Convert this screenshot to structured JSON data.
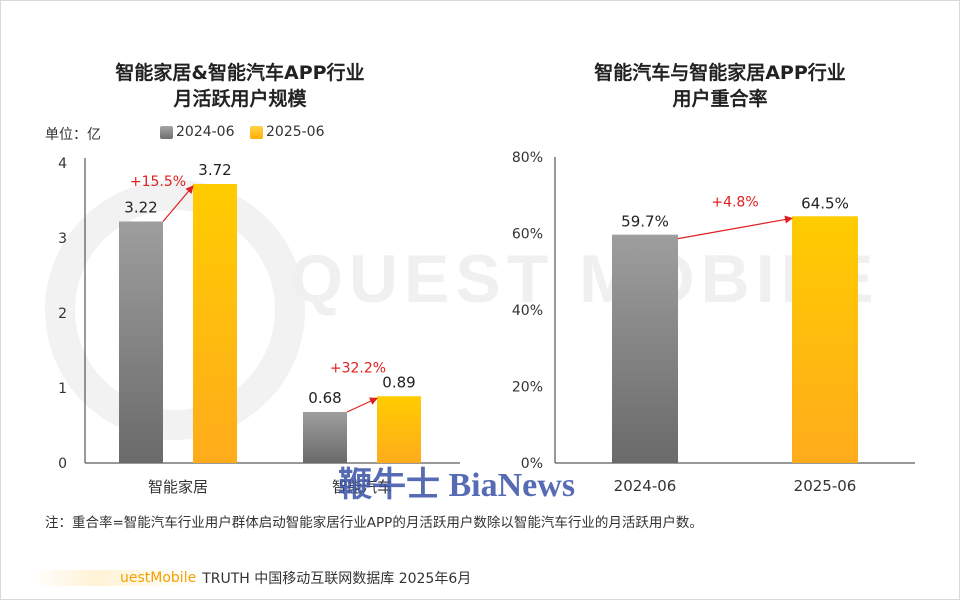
{
  "colors": {
    "series_2024": "#8c8c8c",
    "series_2025": "#ffc000",
    "growth": "#e02020",
    "axis": "#333333",
    "source_brand": "#f5a000",
    "watermark_text": "#3a52a8"
  },
  "chart_data": [
    {
      "type": "bar",
      "title_line1": "智能家居&智能汽车APP行业",
      "title_line2": "月活跃用户规模",
      "unit_label": "单位：亿",
      "legend_position": "top",
      "grid": false,
      "categories": [
        "智能家居",
        "智能汽车"
      ],
      "series": [
        {
          "name": "2024-06",
          "values": [
            3.22,
            0.68
          ],
          "labels": [
            "3.22",
            "0.68"
          ]
        },
        {
          "name": "2025-06",
          "values": [
            3.72,
            0.89
          ],
          "labels": [
            "3.72",
            "0.89"
          ]
        }
      ],
      "growth": [
        "+15.5%",
        "+32.2%"
      ],
      "ylim": [
        0,
        4
      ],
      "yticks": [
        "0",
        "1",
        "2",
        "3",
        "4"
      ]
    },
    {
      "type": "bar",
      "title_line1": "智能汽车与智能家居APP行业",
      "title_line2": "用户重合率",
      "grid": false,
      "categories": [
        "2024-06",
        "2025-06"
      ],
      "values": [
        59.7,
        64.5
      ],
      "labels": [
        "59.7%",
        "64.5%"
      ],
      "growth": "+4.8%",
      "ylim": [
        0,
        80
      ],
      "yticks": [
        "0%",
        "20%",
        "40%",
        "60%",
        "80%"
      ]
    }
  ],
  "note": "注：重合率=智能汽车行业用户群体启动智能家居行业APP的月活跃用户数除以智能汽车行业的月活跃用户数。",
  "source": {
    "brand": "uestMobile",
    "text": "TRUTH 中国移动互联网数据库 2025年6月"
  },
  "watermarks": {
    "main": "QUEST MOBILE",
    "overlay": "鞭牛士 BiaNews"
  }
}
